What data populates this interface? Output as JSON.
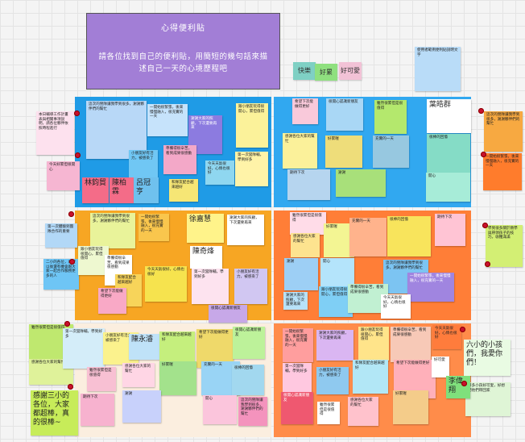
{
  "board": {
    "title": "心得便利貼",
    "subtitle": "請各位找到自己的便利貼，用簡短的幾句話來描述自己一天的心境歷程吧"
  },
  "buttons": {
    "happy": "快樂",
    "tired": "好累",
    "cute": "好可愛"
  },
  "names": {
    "n1": "林鈞貿",
    "n2": "陳柏霖",
    "n3": "呂冠亨",
    "n4": "葉皓群",
    "n5": "徐嘉慧",
    "n6": "陳奇烽",
    "n7": "陳永濬",
    "n8": "李偉翔"
  },
  "notes": {
    "intro": "本日輔導工作計畫表與相關事項說明，請各位夥伴依照時程進行",
    "left1": "今天好累但很開心",
    "left2": "第一次體驗到團隊合作的重要",
    "left3": "二小的各位，希望以後還有機會跟大家一起合作服務更多的人",
    "left4": "感謝三小的各位，大家都超棒，真的很棒~",
    "big1": "六小的小孩們，我愛你們！",
    "big2": "好多小孩好可愛，好想把他們帶回家",
    "teach": "學到很多關於教學與帶領孩子的技巧，收穫滿滿",
    "group1": "這次的營隊讓我學到很多，謝謝夥伴們的幫忙",
    "group2": "一開始很緊張，後來慢慢融入，很充實的一天",
    "group3": "謝謝大家的照顧，下次還要再來",
    "group4": "跟小朋友玩得很開心，累但值得",
    "group5": "準備得很辛苦，看到成果很感動",
    "group6": "今天天氣很好，心情也很好",
    "group7": "第一次當隊輔，學到好多",
    "group8": "小朋友好有活力，被感染了",
    "group9": "和隊友配合越來越好",
    "group10": "希望下次能做得更好",
    "group11": "很開心認識新朋友",
    "group12": "雖然很累但是很值得",
    "group13": "感謝各位大家的幫忙",
    "group14": "好累喔",
    "group15": "充實的一天",
    "group16": "很棒的回憶",
    "group17": "期待下次",
    "group18": "謝謝",
    "group19": "開心",
    "yc": "好可愛",
    "sample": "使用者範例便利貼說明文字"
  }
}
